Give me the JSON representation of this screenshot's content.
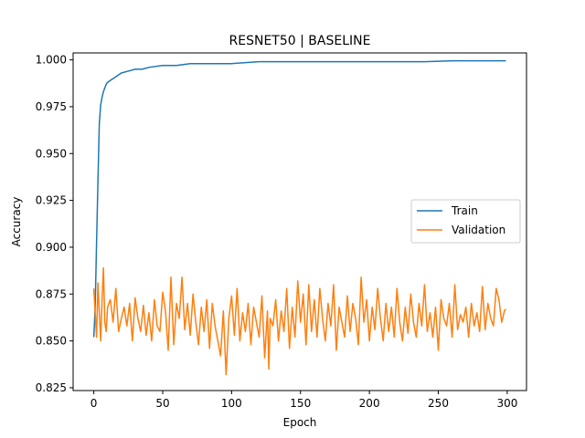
{
  "chart_data": {
    "type": "line",
    "title": "RESNET50 | BASELINE",
    "xlabel": "Epoch",
    "ylabel": "Accuracy",
    "xlim": [
      -15,
      314
    ],
    "ylim": [
      0.8235,
      1.0037
    ],
    "xticks": [
      0,
      50,
      100,
      150,
      200,
      250,
      300
    ],
    "yticks": [
      0.825,
      0.85,
      0.875,
      0.9,
      0.925,
      0.95,
      0.975,
      1.0
    ],
    "grid": false,
    "legend": "center-right",
    "series": [
      {
        "name": "Train",
        "color": "#1f77b4",
        "x": [
          0,
          1,
          2,
          3,
          4,
          5,
          6,
          7,
          8,
          9,
          10,
          12,
          14,
          16,
          18,
          20,
          25,
          30,
          35,
          40,
          50,
          60,
          70,
          80,
          90,
          100,
          120,
          140,
          160,
          180,
          200,
          220,
          240,
          260,
          280,
          299
        ],
        "values": [
          0.852,
          0.868,
          0.902,
          0.935,
          0.966,
          0.976,
          0.98,
          0.983,
          0.985,
          0.987,
          0.988,
          0.989,
          0.99,
          0.991,
          0.992,
          0.993,
          0.994,
          0.995,
          0.995,
          0.996,
          0.997,
          0.997,
          0.998,
          0.998,
          0.998,
          0.998,
          0.999,
          0.999,
          0.999,
          0.999,
          0.999,
          0.999,
          0.999,
          0.9995,
          0.9995,
          0.9995
        ]
      },
      {
        "name": "Validation",
        "color": "#ff7f0e",
        "x": [
          0,
          2,
          3,
          4,
          5,
          6,
          7,
          8,
          9,
          10,
          12,
          14,
          16,
          18,
          20,
          22,
          24,
          26,
          28,
          30,
          32,
          34,
          36,
          38,
          40,
          42,
          44,
          46,
          48,
          50,
          52,
          54,
          56,
          58,
          60,
          62,
          64,
          66,
          68,
          70,
          72,
          74,
          76,
          78,
          80,
          82,
          84,
          86,
          88,
          90,
          92,
          94,
          96,
          98,
          100,
          102,
          104,
          106,
          108,
          110,
          112,
          114,
          116,
          118,
          120,
          122,
          124,
          126,
          127,
          128,
          130,
          132,
          134,
          136,
          138,
          140,
          142,
          144,
          146,
          148,
          150,
          152,
          154,
          156,
          158,
          160,
          162,
          164,
          166,
          168,
          170,
          172,
          174,
          176,
          178,
          180,
          182,
          184,
          186,
          188,
          190,
          192,
          194,
          196,
          198,
          200,
          202,
          204,
          206,
          208,
          210,
          212,
          214,
          216,
          218,
          220,
          222,
          224,
          226,
          228,
          230,
          232,
          234,
          236,
          238,
          240,
          242,
          244,
          246,
          248,
          250,
          252,
          254,
          256,
          258,
          260,
          262,
          264,
          266,
          268,
          270,
          272,
          274,
          276,
          278,
          280,
          282,
          284,
          286,
          288,
          290,
          292,
          294,
          296,
          298,
          299
        ],
        "values": [
          0.878,
          0.852,
          0.881,
          0.865,
          0.85,
          0.872,
          0.889,
          0.86,
          0.855,
          0.868,
          0.872,
          0.86,
          0.878,
          0.855,
          0.862,
          0.868,
          0.858,
          0.87,
          0.85,
          0.873,
          0.862,
          0.855,
          0.869,
          0.853,
          0.865,
          0.85,
          0.872,
          0.858,
          0.855,
          0.876,
          0.866,
          0.845,
          0.884,
          0.848,
          0.87,
          0.862,
          0.884,
          0.856,
          0.87,
          0.853,
          0.875,
          0.86,
          0.848,
          0.868,
          0.855,
          0.872,
          0.846,
          0.87,
          0.858,
          0.85,
          0.842,
          0.866,
          0.832,
          0.862,
          0.874,
          0.853,
          0.878,
          0.85,
          0.865,
          0.855,
          0.87,
          0.848,
          0.868,
          0.86,
          0.852,
          0.874,
          0.841,
          0.866,
          0.835,
          0.862,
          0.858,
          0.872,
          0.85,
          0.866,
          0.855,
          0.878,
          0.846,
          0.868,
          0.852,
          0.882,
          0.86,
          0.875,
          0.848,
          0.88,
          0.855,
          0.872,
          0.852,
          0.878,
          0.862,
          0.85,
          0.87,
          0.858,
          0.88,
          0.845,
          0.868,
          0.86,
          0.852,
          0.874,
          0.855,
          0.87,
          0.862,
          0.848,
          0.884,
          0.86,
          0.872,
          0.85,
          0.868,
          0.856,
          0.878,
          0.862,
          0.85,
          0.87,
          0.855,
          0.868,
          0.852,
          0.878,
          0.86,
          0.85,
          0.868,
          0.854,
          0.875,
          0.86,
          0.852,
          0.87,
          0.858,
          0.88,
          0.855,
          0.865,
          0.852,
          0.868,
          0.845,
          0.872,
          0.862,
          0.858,
          0.87,
          0.852,
          0.88,
          0.856,
          0.864,
          0.86,
          0.868,
          0.852,
          0.87,
          0.858,
          0.865,
          0.855,
          0.879,
          0.856,
          0.87,
          0.862,
          0.858,
          0.878,
          0.872,
          0.86,
          0.866,
          0.867
        ]
      }
    ]
  }
}
